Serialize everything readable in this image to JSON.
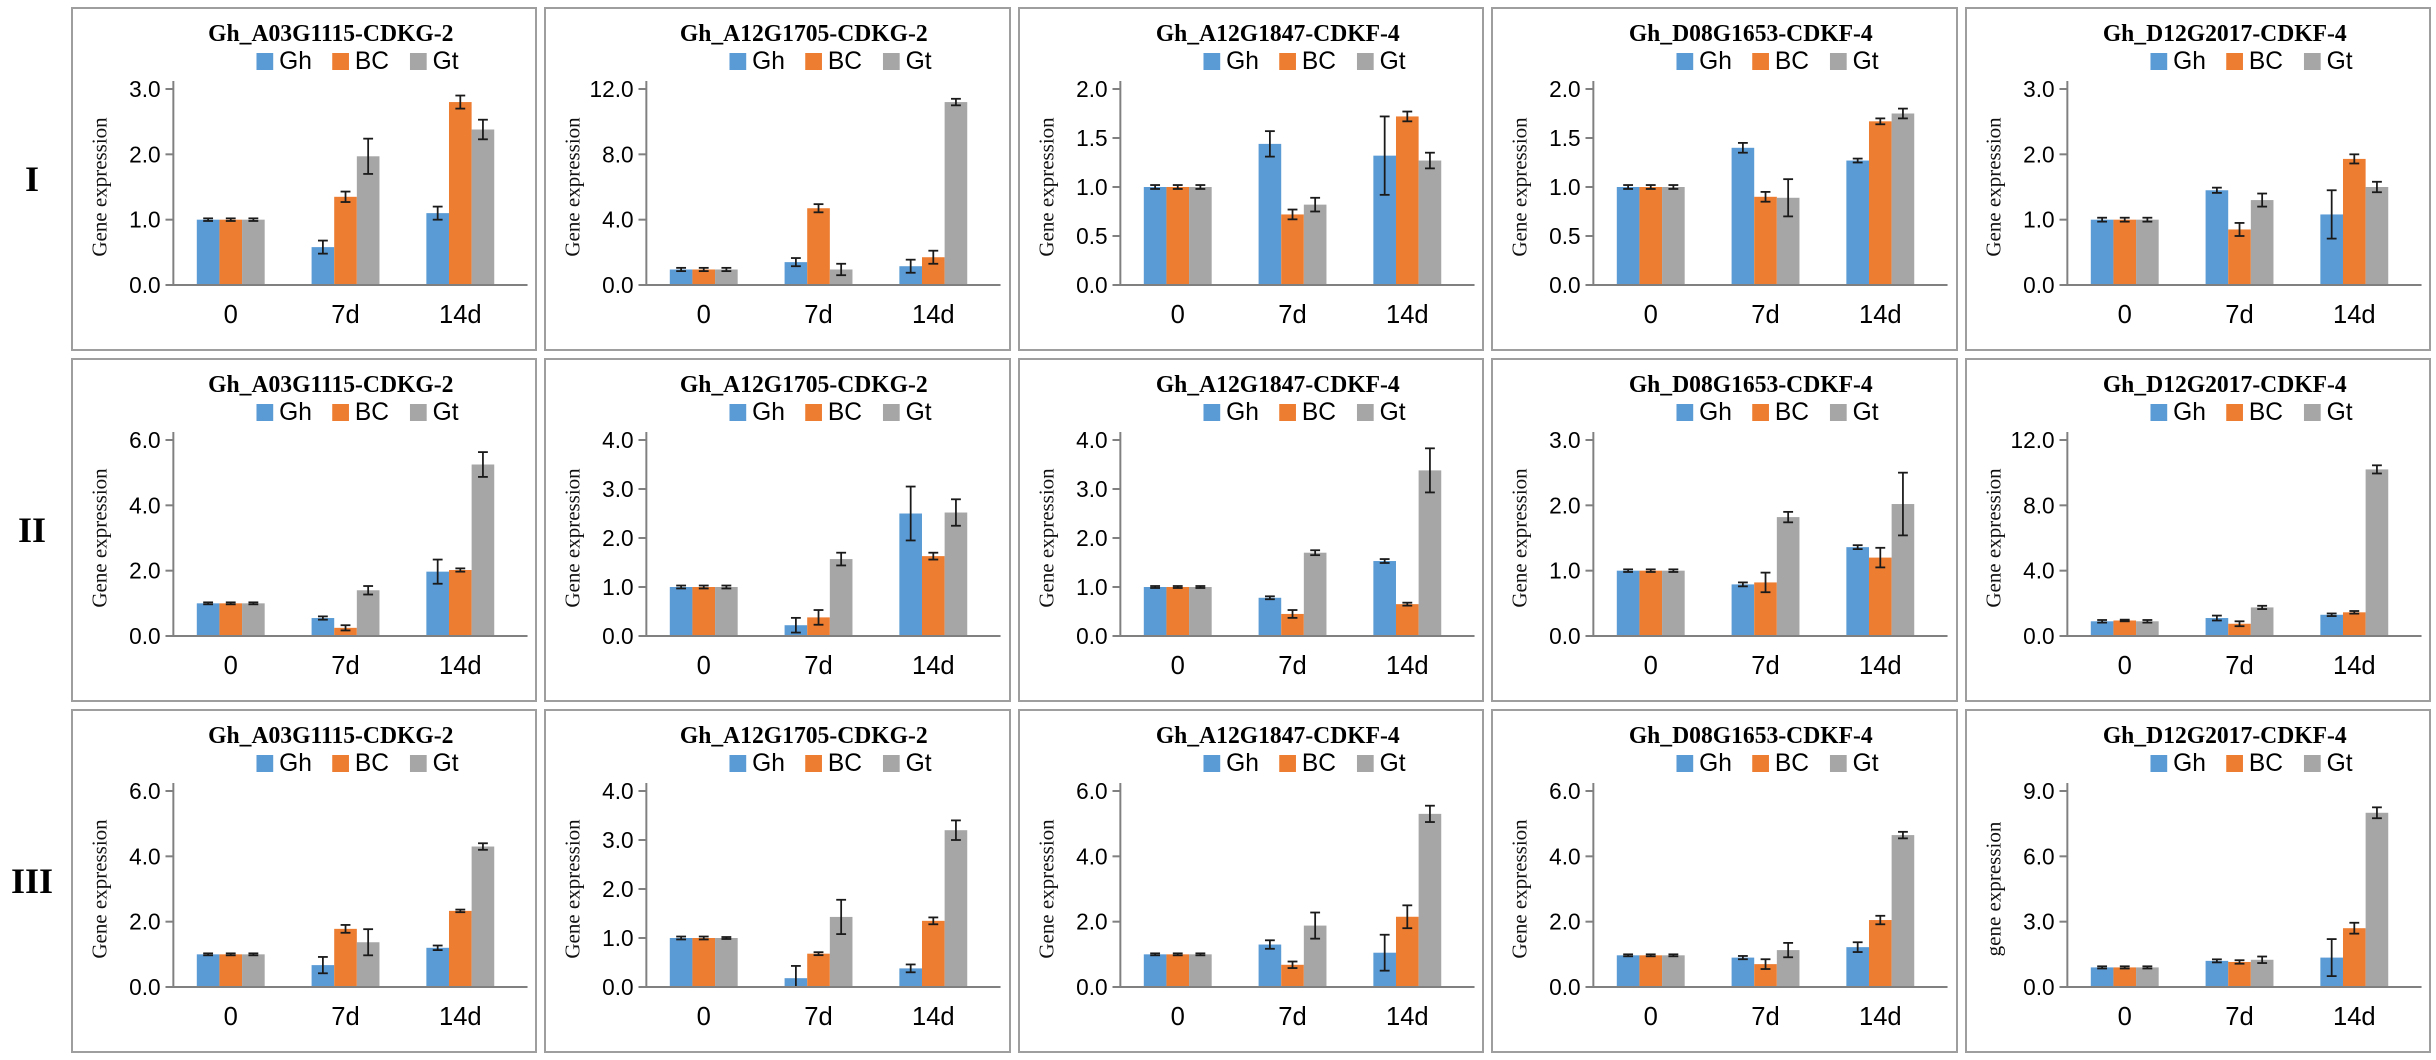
{
  "figure": {
    "row_labels": [
      "I",
      "II",
      "III"
    ],
    "legend_labels": [
      "Gh",
      "BC",
      "Gt"
    ],
    "x_categories": [
      "0",
      "7d",
      "14d"
    ]
  },
  "colors": {
    "Gh": "#5b9bd5",
    "BC": "#ed7d31",
    "Gt": "#a6a6a6",
    "axis": "#808080",
    "error_bar": "#1a1a1a",
    "panel_border": "#9e9e9e",
    "text": "#000000"
  },
  "chart_data": [
    {
      "row": "I",
      "col": 1,
      "type": "bar",
      "title": "Gh_A03G1115-CDKG-2",
      "ylabel": "Gene expression",
      "categories": [
        "0",
        "7d",
        "14d"
      ],
      "ylim": [
        0,
        3.0
      ],
      "yticks": [
        0,
        1,
        2,
        3
      ],
      "legend_position": "top",
      "grid": false,
      "series": [
        {
          "name": "Gh",
          "values": [
            1.0,
            0.58,
            1.1
          ],
          "errors": [
            0.02,
            0.1,
            0.1
          ]
        },
        {
          "name": "BC",
          "values": [
            1.0,
            1.35,
            2.8
          ],
          "errors": [
            0.02,
            0.08,
            0.1
          ]
        },
        {
          "name": "Gt",
          "values": [
            1.0,
            1.97,
            2.38
          ],
          "errors": [
            0.02,
            0.27,
            0.15
          ]
        }
      ]
    },
    {
      "row": "I",
      "col": 2,
      "type": "bar",
      "title": "Gh_A12G1705-CDKG-2",
      "ylabel": "Gene expression",
      "categories": [
        "0",
        "7d",
        "14d"
      ],
      "ylim": [
        0,
        12.0
      ],
      "yticks": [
        0,
        4,
        8,
        12
      ],
      "legend_position": "top",
      "grid": false,
      "series": [
        {
          "name": "Gh",
          "values": [
            0.95,
            1.4,
            1.15
          ],
          "errors": [
            0.1,
            0.25,
            0.4
          ]
        },
        {
          "name": "BC",
          "values": [
            0.95,
            4.7,
            1.7
          ],
          "errors": [
            0.1,
            0.25,
            0.4
          ]
        },
        {
          "name": "Gt",
          "values": [
            0.95,
            0.95,
            11.2
          ],
          "errors": [
            0.1,
            0.35,
            0.2
          ]
        }
      ]
    },
    {
      "row": "I",
      "col": 3,
      "type": "bar",
      "title": "Gh_A12G1847-CDKF-4",
      "ylabel": "Gene expression",
      "categories": [
        "0",
        "7d",
        "14d"
      ],
      "ylim": [
        0,
        2.0
      ],
      "yticks": [
        0,
        0.5,
        1,
        1.5,
        2
      ],
      "legend_position": "top",
      "grid": false,
      "series": [
        {
          "name": "Gh",
          "values": [
            1.0,
            1.44,
            1.32
          ],
          "errors": [
            0.02,
            0.13,
            0.4
          ]
        },
        {
          "name": "BC",
          "values": [
            1.0,
            0.72,
            1.72
          ],
          "errors": [
            0.02,
            0.05,
            0.05
          ]
        },
        {
          "name": "Gt",
          "values": [
            1.0,
            0.82,
            1.27
          ],
          "errors": [
            0.02,
            0.07,
            0.08
          ]
        }
      ]
    },
    {
      "row": "I",
      "col": 4,
      "type": "bar",
      "title": "Gh_D08G1653-CDKF-4",
      "ylabel": "Gene expression",
      "categories": [
        "0",
        "7d",
        "14d"
      ],
      "ylim": [
        0,
        2.0
      ],
      "yticks": [
        0,
        0.5,
        1,
        1.5,
        2
      ],
      "legend_position": "top",
      "grid": false,
      "series": [
        {
          "name": "Gh",
          "values": [
            1.0,
            1.4,
            1.27
          ],
          "errors": [
            0.02,
            0.05,
            0.02
          ]
        },
        {
          "name": "BC",
          "values": [
            1.0,
            0.9,
            1.67
          ],
          "errors": [
            0.02,
            0.05,
            0.03
          ]
        },
        {
          "name": "Gt",
          "values": [
            1.0,
            0.89,
            1.75
          ],
          "errors": [
            0.02,
            0.19,
            0.05
          ]
        }
      ]
    },
    {
      "row": "I",
      "col": 5,
      "type": "bar",
      "title": "Gh_D12G2017-CDKF-4",
      "ylabel": "Gene expression",
      "categories": [
        "0",
        "7d",
        "14d"
      ],
      "ylim": [
        0,
        3.0
      ],
      "yticks": [
        0,
        1,
        2,
        3
      ],
      "legend_position": "top",
      "grid": false,
      "series": [
        {
          "name": "Gh",
          "values": [
            1.0,
            1.45,
            1.08
          ],
          "errors": [
            0.03,
            0.04,
            0.37
          ]
        },
        {
          "name": "BC",
          "values": [
            1.0,
            0.85,
            1.93
          ],
          "errors": [
            0.03,
            0.1,
            0.07
          ]
        },
        {
          "name": "Gt",
          "values": [
            1.0,
            1.3,
            1.5
          ],
          "errors": [
            0.03,
            0.1,
            0.08
          ]
        }
      ]
    },
    {
      "row": "II",
      "col": 1,
      "type": "bar",
      "title": "Gh_A03G1115-CDKG-2",
      "ylabel": "Gene expression",
      "categories": [
        "0",
        "7d",
        "14d"
      ],
      "ylim": [
        0,
        6.0
      ],
      "yticks": [
        0,
        2,
        4,
        6
      ],
      "legend_position": "top",
      "grid": false,
      "series": [
        {
          "name": "Gh",
          "values": [
            1.0,
            0.55,
            1.97
          ],
          "errors": [
            0.03,
            0.05,
            0.37
          ]
        },
        {
          "name": "BC",
          "values": [
            1.0,
            0.25,
            2.02
          ],
          "errors": [
            0.03,
            0.08,
            0.05
          ]
        },
        {
          "name": "Gt",
          "values": [
            1.0,
            1.4,
            5.25
          ],
          "errors": [
            0.03,
            0.13,
            0.38
          ]
        }
      ]
    },
    {
      "row": "II",
      "col": 2,
      "type": "bar",
      "title": "Gh_A12G1705-CDKG-2",
      "ylabel": "Gene expression",
      "categories": [
        "0",
        "7d",
        "14d"
      ],
      "ylim": [
        0,
        4.0
      ],
      "yticks": [
        0,
        1,
        2,
        3,
        4
      ],
      "legend_position": "top",
      "grid": false,
      "series": [
        {
          "name": "Gh",
          "values": [
            1.0,
            0.22,
            2.5
          ],
          "errors": [
            0.03,
            0.15,
            0.55
          ]
        },
        {
          "name": "BC",
          "values": [
            1.0,
            0.38,
            1.63
          ],
          "errors": [
            0.03,
            0.15,
            0.07
          ]
        },
        {
          "name": "Gt",
          "values": [
            1.0,
            1.57,
            2.52
          ],
          "errors": [
            0.03,
            0.13,
            0.27
          ]
        }
      ]
    },
    {
      "row": "II",
      "col": 3,
      "type": "bar",
      "title": "Gh_A12G1847-CDKF-4",
      "ylabel": "Gene expression",
      "categories": [
        "0",
        "7d",
        "14d"
      ],
      "ylim": [
        0,
        4.0
      ],
      "yticks": [
        0,
        1,
        2,
        3,
        4
      ],
      "legend_position": "top",
      "grid": false,
      "series": [
        {
          "name": "Gh",
          "values": [
            1.0,
            0.78,
            1.53
          ],
          "errors": [
            0.02,
            0.03,
            0.04
          ]
        },
        {
          "name": "BC",
          "values": [
            1.0,
            0.45,
            0.65
          ],
          "errors": [
            0.02,
            0.08,
            0.03
          ]
        },
        {
          "name": "Gt",
          "values": [
            1.0,
            1.7,
            3.38
          ],
          "errors": [
            0.02,
            0.05,
            0.45
          ]
        }
      ]
    },
    {
      "row": "II",
      "col": 4,
      "type": "bar",
      "title": "Gh_D08G1653-CDKF-4",
      "ylabel": "Gene expression",
      "categories": [
        "0",
        "7d",
        "14d"
      ],
      "ylim": [
        0,
        3.0
      ],
      "yticks": [
        0,
        1,
        2,
        3
      ],
      "legend_position": "top",
      "grid": false,
      "series": [
        {
          "name": "Gh",
          "values": [
            1.0,
            0.79,
            1.36
          ],
          "errors": [
            0.02,
            0.03,
            0.03
          ]
        },
        {
          "name": "BC",
          "values": [
            1.0,
            0.82,
            1.2
          ],
          "errors": [
            0.02,
            0.15,
            0.15
          ]
        },
        {
          "name": "Gt",
          "values": [
            1.0,
            1.82,
            2.02
          ],
          "errors": [
            0.02,
            0.08,
            0.48
          ]
        }
      ]
    },
    {
      "row": "II",
      "col": 5,
      "type": "bar",
      "title": "Gh_D12G2017-CDKF-4",
      "ylabel": "Gene expression",
      "categories": [
        "0",
        "7d",
        "14d"
      ],
      "ylim": [
        0,
        12.0
      ],
      "yticks": [
        0,
        4,
        8,
        12
      ],
      "legend_position": "top",
      "grid": false,
      "series": [
        {
          "name": "Gh",
          "values": [
            0.9,
            1.1,
            1.3
          ],
          "errors": [
            0.08,
            0.15,
            0.08
          ]
        },
        {
          "name": "BC",
          "values": [
            0.95,
            0.75,
            1.45
          ],
          "errors": [
            0.05,
            0.15,
            0.08
          ]
        },
        {
          "name": "Gt",
          "values": [
            0.9,
            1.75,
            10.2
          ],
          "errors": [
            0.08,
            0.1,
            0.25
          ]
        }
      ]
    },
    {
      "row": "III",
      "col": 1,
      "type": "bar",
      "title": "Gh_A03G1115-CDKG-2",
      "ylabel": "Gene expression",
      "categories": [
        "0",
        "7d",
        "14d"
      ],
      "ylim": [
        0,
        6.0
      ],
      "yticks": [
        0,
        2,
        4,
        6
      ],
      "legend_position": "top",
      "grid": false,
      "series": [
        {
          "name": "Gh",
          "values": [
            1.0,
            0.67,
            1.2
          ],
          "errors": [
            0.03,
            0.25,
            0.07
          ]
        },
        {
          "name": "BC",
          "values": [
            1.0,
            1.78,
            2.33
          ],
          "errors": [
            0.03,
            0.12,
            0.04
          ]
        },
        {
          "name": "Gt",
          "values": [
            1.0,
            1.37,
            4.3
          ],
          "errors": [
            0.03,
            0.4,
            0.1
          ]
        }
      ]
    },
    {
      "row": "III",
      "col": 2,
      "type": "bar",
      "title": "Gh_A12G1705-CDKG-2",
      "ylabel": "Gene expression",
      "categories": [
        "0",
        "7d",
        "14d"
      ],
      "ylim": [
        0,
        4.0
      ],
      "yticks": [
        0,
        1,
        2,
        3,
        4
      ],
      "legend_position": "top",
      "grid": false,
      "series": [
        {
          "name": "Gh",
          "values": [
            1.0,
            0.18,
            0.38
          ],
          "errors": [
            0.03,
            0.25,
            0.08
          ]
        },
        {
          "name": "BC",
          "values": [
            1.0,
            0.68,
            1.35
          ],
          "errors": [
            0.03,
            0.03,
            0.07
          ]
        },
        {
          "name": "Gt",
          "values": [
            1.0,
            1.43,
            3.2
          ],
          "errors": [
            0.02,
            0.35,
            0.2
          ]
        }
      ]
    },
    {
      "row": "III",
      "col": 3,
      "type": "bar",
      "title": "Gh_A12G1847-CDKF-4",
      "ylabel": "Gene expression",
      "categories": [
        "0",
        "7d",
        "14d"
      ],
      "ylim": [
        0,
        6.0
      ],
      "yticks": [
        0,
        2,
        4,
        6
      ],
      "legend_position": "top",
      "grid": false,
      "series": [
        {
          "name": "Gh",
          "values": [
            1.0,
            1.3,
            1.05
          ],
          "errors": [
            0.03,
            0.13,
            0.55
          ]
        },
        {
          "name": "BC",
          "values": [
            1.0,
            0.68,
            2.15
          ],
          "errors": [
            0.03,
            0.1,
            0.35
          ]
        },
        {
          "name": "Gt",
          "values": [
            1.0,
            1.88,
            5.3
          ],
          "errors": [
            0.03,
            0.4,
            0.25
          ]
        }
      ]
    },
    {
      "row": "III",
      "col": 4,
      "type": "bar",
      "title": "Gh_D08G1653-CDKF-4",
      "ylabel": "Gene expression",
      "categories": [
        "0",
        "7d",
        "14d"
      ],
      "ylim": [
        0,
        6.0
      ],
      "yticks": [
        0,
        2,
        4,
        6
      ],
      "legend_position": "top",
      "grid": false,
      "series": [
        {
          "name": "Gh",
          "values": [
            0.97,
            0.9,
            1.22
          ],
          "errors": [
            0.03,
            0.05,
            0.15
          ]
        },
        {
          "name": "BC",
          "values": [
            0.97,
            0.7,
            2.05
          ],
          "errors": [
            0.03,
            0.15,
            0.13
          ]
        },
        {
          "name": "Gt",
          "values": [
            0.97,
            1.13,
            4.65
          ],
          "errors": [
            0.03,
            0.22,
            0.1
          ]
        }
      ]
    },
    {
      "row": "III",
      "col": 5,
      "type": "bar",
      "title": "Gh_D12G2017-CDKF-4",
      "ylabel": "gene expression",
      "categories": [
        "0",
        "7d",
        "14d"
      ],
      "ylim": [
        0,
        9.0
      ],
      "yticks": [
        0,
        3,
        6,
        9
      ],
      "legend_position": "top",
      "grid": false,
      "series": [
        {
          "name": "Gh",
          "values": [
            0.9,
            1.2,
            1.35
          ],
          "errors": [
            0.05,
            0.07,
            0.85
          ]
        },
        {
          "name": "BC",
          "values": [
            0.9,
            1.15,
            2.7
          ],
          "errors": [
            0.05,
            0.08,
            0.25
          ]
        },
        {
          "name": "Gt",
          "values": [
            0.9,
            1.25,
            8.0
          ],
          "errors": [
            0.05,
            0.15,
            0.25
          ]
        }
      ]
    }
  ]
}
